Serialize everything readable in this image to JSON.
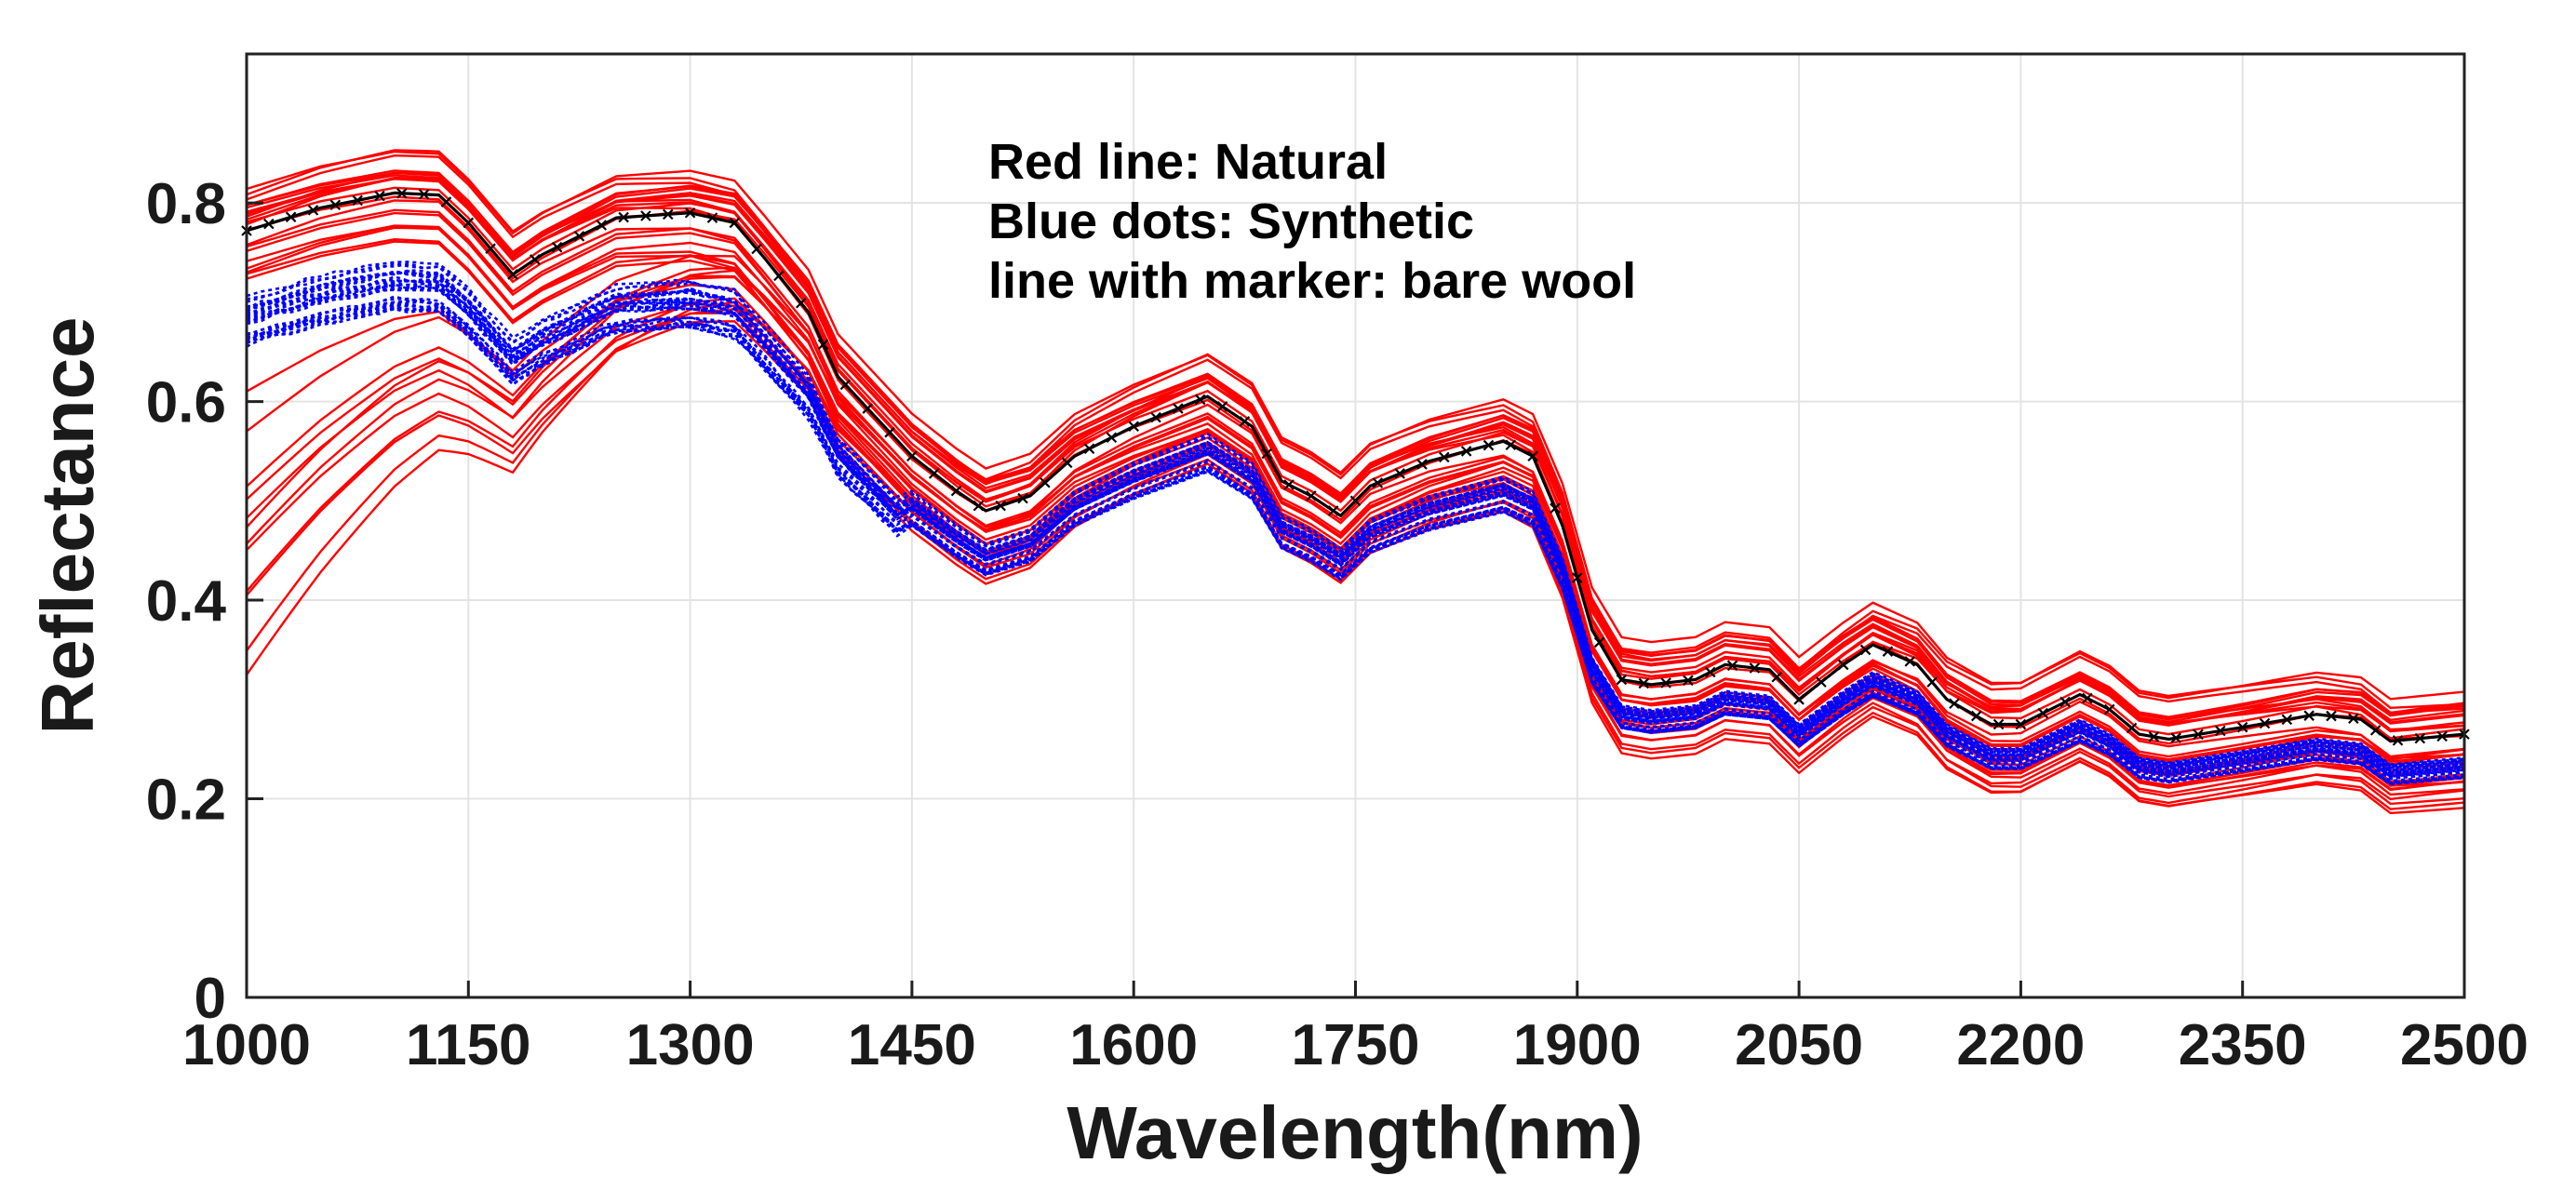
{
  "chart_data": {
    "type": "line",
    "title": "",
    "xlabel": "Wavelength(nm)",
    "ylabel": "Reflectance",
    "xlim": [
      1000,
      2500
    ],
    "ylim": [
      0,
      0.95
    ],
    "grid": true,
    "x_ticks": [
      1000,
      1150,
      1300,
      1450,
      1600,
      1750,
      1900,
      2050,
      2200,
      2350,
      2500
    ],
    "x_tick_labels": [
      "1000",
      "1150",
      "1300",
      "1450",
      "1600",
      "1750",
      "1900",
      "2050",
      "2200",
      "2350",
      "2500"
    ],
    "y_ticks": [
      0,
      0.2,
      0.4,
      0.6,
      0.8
    ],
    "y_tick_labels": [
      "0",
      "0.2",
      "0.4",
      "0.6",
      "0.8"
    ],
    "annotations": {
      "line1": "Red line: Natural",
      "line2": "Blue dots: Synthetic",
      "line3": "line with marker: bare wool"
    },
    "x": [
      1000,
      1050,
      1100,
      1130,
      1150,
      1180,
      1200,
      1250,
      1300,
      1330,
      1350,
      1380,
      1400,
      1450,
      1480,
      1500,
      1530,
      1560,
      1600,
      1650,
      1680,
      1700,
      1720,
      1740,
      1760,
      1800,
      1850,
      1870,
      1890,
      1910,
      1930,
      1950,
      1980,
      2000,
      2030,
      2050,
      2080,
      2100,
      2130,
      2150,
      2180,
      2200,
      2240,
      2260,
      2280,
      2300,
      2350,
      2400,
      2430,
      2450,
      2500
    ],
    "series": [
      {
        "name": "bare wool",
        "color": "#000000",
        "values": [
          0.772,
          0.795,
          0.81,
          0.808,
          0.78,
          0.728,
          0.748,
          0.785,
          0.79,
          0.78,
          0.745,
          0.69,
          0.625,
          0.545,
          0.51,
          0.49,
          0.505,
          0.545,
          0.575,
          0.605,
          0.575,
          0.52,
          0.505,
          0.485,
          0.515,
          0.54,
          0.56,
          0.545,
          0.475,
          0.37,
          0.32,
          0.315,
          0.32,
          0.335,
          0.33,
          0.3,
          0.335,
          0.355,
          0.335,
          0.3,
          0.275,
          0.275,
          0.305,
          0.29,
          0.265,
          0.26,
          0.272,
          0.285,
          0.28,
          0.258,
          0.265
        ]
      }
    ],
    "groups": [
      {
        "name": "Natural",
        "color": "#ff0000",
        "style": "solid",
        "curves": 34,
        "envelope_upper_offset": 0.045,
        "envelope_lower_offset": -0.06
      },
      {
        "name": "Synthetic",
        "color": "#0000ff",
        "style": "dotted",
        "curves": 30
      }
    ]
  }
}
